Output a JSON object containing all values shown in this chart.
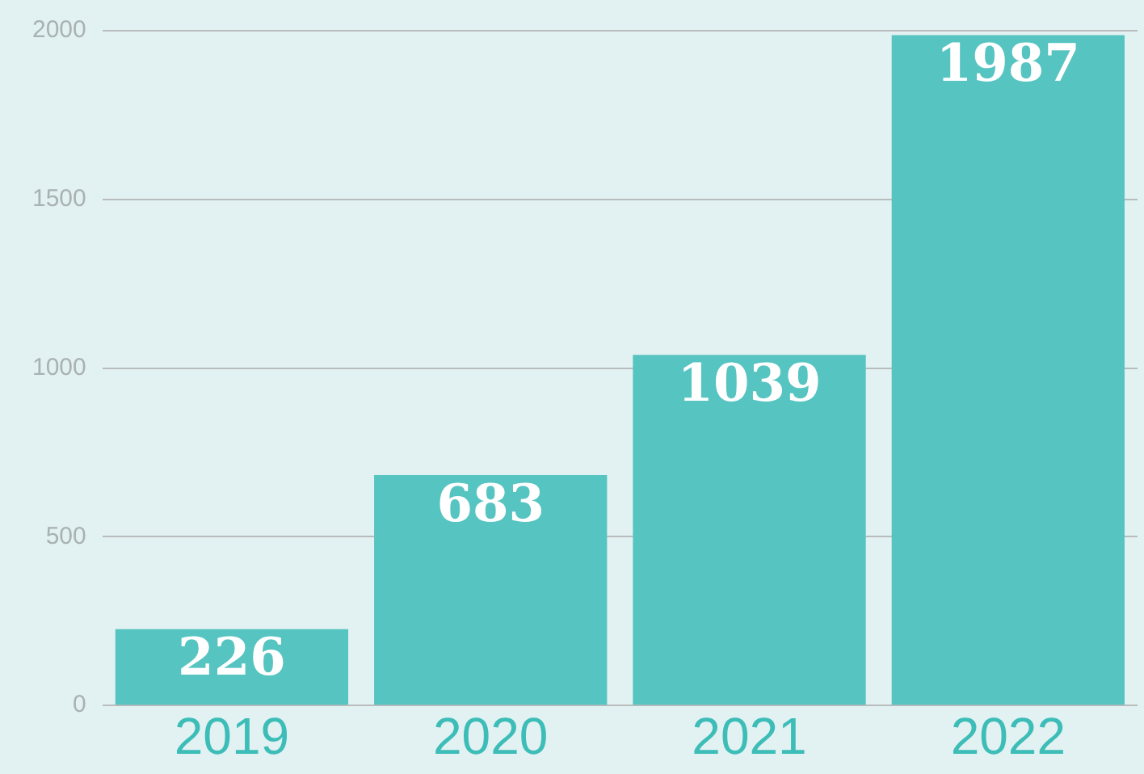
{
  "chart_data": {
    "type": "bar",
    "categories": [
      "2019",
      "2020",
      "2021",
      "2022"
    ],
    "values": [
      226,
      683,
      1039,
      1987
    ],
    "color": "#56c4c1",
    "ylim": [
      0,
      2000
    ],
    "yticks": [
      0,
      500,
      1000,
      1500,
      2000
    ],
    "grid": "y",
    "data_labels": true
  }
}
